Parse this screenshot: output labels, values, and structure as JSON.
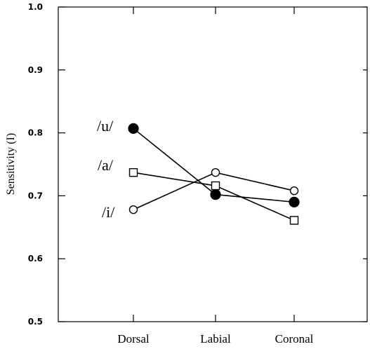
{
  "chart_data": {
    "type": "line",
    "categories": [
      "Dorsal",
      "Labial",
      "Coronal"
    ],
    "ylabel": "Sensitivity (I)",
    "xlabel": "",
    "ylim": [
      0.5,
      1.0
    ],
    "yticks": [
      "0.5",
      "0.6",
      "0.7",
      "0.8",
      "0.9",
      "1.0"
    ],
    "grid": false,
    "series": [
      {
        "name": "/u/",
        "marker": "filled-circle",
        "values": [
          0.807,
          0.702,
          0.69
        ]
      },
      {
        "name": "/a/",
        "marker": "open-square",
        "values": [
          0.737,
          0.716,
          0.661
        ]
      },
      {
        "name": "/i/",
        "marker": "open-circle",
        "values": [
          0.678,
          0.737,
          0.708
        ]
      }
    ]
  }
}
